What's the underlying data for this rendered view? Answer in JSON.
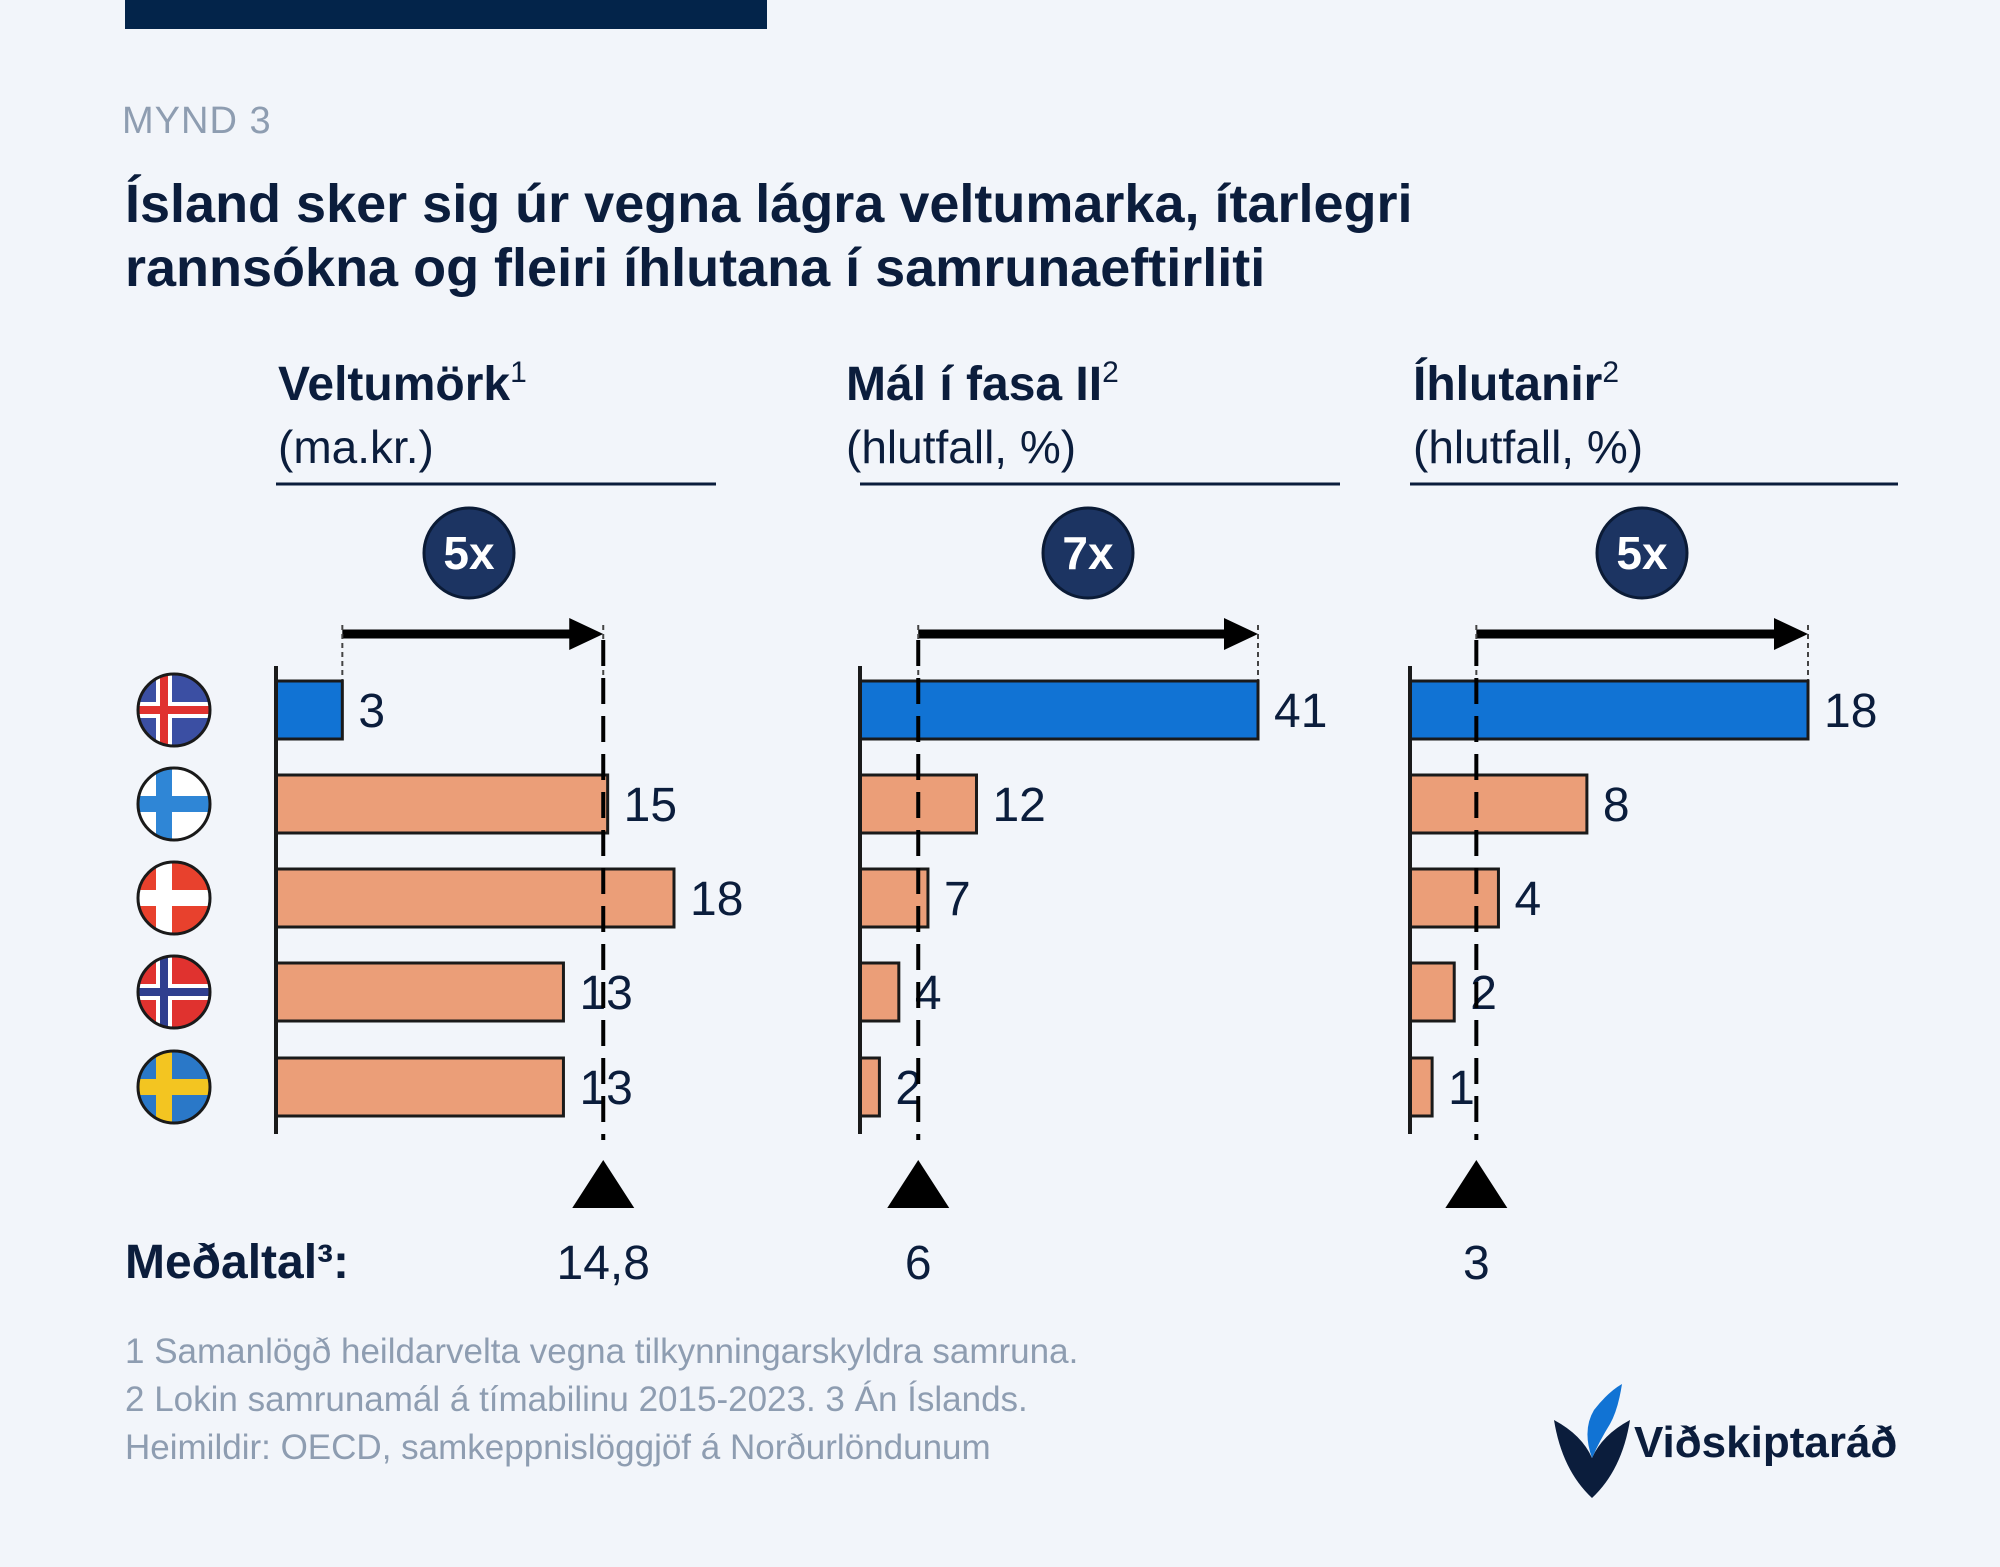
{
  "kicker": "MYND 3",
  "title_lines": [
    "Ísland sker sig úr vegna lágra veltumarka, ítarlegri",
    "rannsókna og fleiri íhlutana í samrunaeftirliti"
  ],
  "flags": [
    {
      "country": "Iceland",
      "icon": "iceland-flag-icon"
    },
    {
      "country": "Finland",
      "icon": "finland-flag-icon"
    },
    {
      "country": "Denmark",
      "icon": "denmark-flag-icon"
    },
    {
      "country": "Norway",
      "icon": "norway-flag-icon"
    },
    {
      "country": "Sweden",
      "icon": "sweden-flag-icon"
    }
  ],
  "average_label": "Meðaltal³:",
  "footnotes": [
    "1 Samanlögð heildarvelta vegna tilkynningarskyldra samruna.",
    "2 Lokin samrunamál á tímabilinu 2015-2023. 3 Án Íslands.",
    "Heimildir: OECD, samkeppnislöggjöf á Norðurlöndunum"
  ],
  "logo": {
    "text": "Viðskiptaráð",
    "icon": "vidskiptarad-logo-icon"
  },
  "colors": {
    "iceland": "#1173d4",
    "others": "#eb9e78",
    "dark": "#0b1d3c"
  },
  "chart_data": [
    {
      "type": "bar",
      "title": "Veltumörk",
      "title_sup": "1",
      "subtitle": "(ma.kr.)",
      "multiplier": "5x",
      "categories": [
        "Iceland",
        "Finland",
        "Denmark",
        "Norway",
        "Sweden"
      ],
      "values": [
        3,
        15,
        18,
        13,
        13
      ],
      "value_labels": [
        "3",
        "15",
        "18",
        "13",
        "13"
      ],
      "average": 14.8,
      "average_label": "14,8",
      "xlim": [
        0,
        18
      ]
    },
    {
      "type": "bar",
      "title": "Mál í fasa II",
      "title_sup": "2",
      "subtitle": "(hlutfall, %)",
      "multiplier": "7x",
      "categories": [
        "Iceland",
        "Finland",
        "Denmark",
        "Norway",
        "Sweden"
      ],
      "values": [
        41,
        12,
        7,
        4,
        2
      ],
      "value_labels": [
        "41",
        "12",
        "7",
        "4",
        "2"
      ],
      "average": 6,
      "average_label": "6",
      "xlim": [
        0,
        41
      ]
    },
    {
      "type": "bar",
      "title": "Íhlutanir",
      "title_sup": "2",
      "subtitle": "(hlutfall, %)",
      "multiplier": "5x",
      "categories": [
        "Iceland",
        "Finland",
        "Denmark",
        "Norway",
        "Sweden"
      ],
      "values": [
        18,
        8,
        4,
        2,
        1
      ],
      "value_labels": [
        "18",
        "8",
        "4",
        "2",
        "1"
      ],
      "average": 3,
      "average_label": "3",
      "xlim": [
        0,
        18
      ]
    }
  ]
}
